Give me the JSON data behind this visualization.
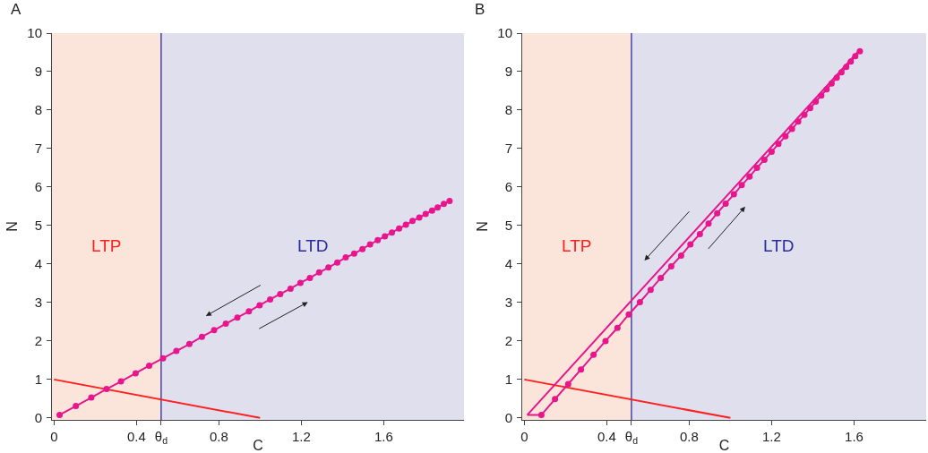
{
  "chart_data": [
    {
      "type": "line",
      "title": "A",
      "xlabel": "C",
      "ylabel": "N",
      "xlim": [
        -0.01,
        1.99
      ],
      "ylim": [
        -0.05,
        10
      ],
      "xticks": [
        0,
        0.4,
        {
          "value": 0.52,
          "label": "θ$_{d}$"
        },
        0.8,
        1.2,
        1.6
      ],
      "yticks": [
        0,
        1,
        2,
        3,
        4,
        5,
        6,
        7,
        8,
        9,
        10
      ],
      "grid": false,
      "line_style": "solid",
      "bands": [
        {
          "axis": "x",
          "from": -0.01,
          "to": 0.52,
          "label": "LTP",
          "color": "#fbe4da"
        },
        {
          "axis": "x",
          "from": 0.52,
          "to": 1.99,
          "label": "LTD",
          "color": "#dfdfee"
        }
      ],
      "ref_lines": [
        {
          "axis": "x",
          "value": 0.52,
          "color": "#2b2b9a"
        }
      ],
      "series": [
        {
          "color": "#ff2020",
          "marker": "none",
          "x": [
            0,
            1
          ],
          "values": [
            1,
            0
          ]
        },
        {
          "color": "#e8168c",
          "marker": "circle",
          "x": [
            0.027,
            0.106,
            0.181,
            0.255,
            0.325,
            0.396,
            0.462,
            0.529,
            0.594,
            0.657,
            0.718,
            0.777,
            0.834,
            0.89,
            0.946,
            0.998,
            1.049,
            1.098,
            1.148,
            1.196,
            1.242,
            1.287,
            1.332,
            1.375,
            1.416,
            1.457,
            1.497,
            1.534,
            1.571,
            1.606,
            1.64,
            1.675,
            1.708,
            1.74,
            1.773,
            1.804,
            1.835,
            1.862,
            1.892,
            1.92
          ],
          "values": [
            0.08,
            0.31,
            0.53,
            0.75,
            0.95,
            1.16,
            1.36,
            1.55,
            1.74,
            1.92,
            2.11,
            2.28,
            2.45,
            2.61,
            2.77,
            2.93,
            3.08,
            3.22,
            3.36,
            3.51,
            3.64,
            3.78,
            3.91,
            4.04,
            4.17,
            4.27,
            4.39,
            4.51,
            4.62,
            4.72,
            4.82,
            4.92,
            5.02,
            5.12,
            5.21,
            5.3,
            5.39,
            5.47,
            5.56,
            5.64
          ]
        }
      ]
    },
    {
      "type": "line",
      "title": "B",
      "xlabel": "C",
      "ylabel": "N",
      "xlim": [
        -0.01,
        1.95
      ],
      "ylim": [
        -0.05,
        10
      ],
      "xticks": [
        0,
        0.4,
        {
          "value": 0.52,
          "label": "θ$_{d}$"
        },
        0.8,
        1.2,
        1.6
      ],
      "yticks": [
        0,
        1,
        2,
        3,
        4,
        5,
        6,
        7,
        8,
        9,
        10
      ],
      "grid": false,
      "line_style": "solid",
      "bands": [
        {
          "axis": "x",
          "from": -0.01,
          "to": 0.52,
          "label": "LTP",
          "color": "#fbe4da"
        },
        {
          "axis": "x",
          "from": 0.52,
          "to": 1.95,
          "label": "LTD",
          "color": "#dfdfee"
        }
      ],
      "ref_lines": [
        {
          "axis": "x",
          "value": 0.52,
          "color": "#2b2b9a"
        }
      ],
      "series": [
        {
          "color": "#ff2020",
          "marker": "none",
          "x": [
            0,
            1
          ],
          "values": [
            1,
            0
          ]
        },
        {
          "color": "#e8168c",
          "marker": "circle",
          "x": [
            0.083,
            0.149,
            0.213,
            0.275,
            0.336,
            0.394,
            0.452,
            0.507,
            0.561,
            0.613,
            0.662,
            0.713,
            0.761,
            0.806,
            0.852,
            0.894,
            0.936,
            0.977,
            1.017,
            1.055,
            1.093,
            1.129,
            1.165,
            1.2,
            1.233,
            1.267,
            1.299,
            1.329,
            1.359,
            1.387,
            1.414,
            1.441,
            1.467,
            1.491,
            1.516,
            1.539,
            1.562,
            1.584,
            1.606,
            1.628
          ],
          "values": [
            0.08,
            0.49,
            0.88,
            1.26,
            1.64,
            2,
            2.34,
            2.69,
            3.01,
            3.33,
            3.64,
            3.94,
            4.22,
            4.51,
            4.78,
            5.05,
            5.32,
            5.57,
            5.81,
            6.05,
            6.27,
            6.5,
            6.71,
            6.92,
            7.12,
            7.32,
            7.51,
            7.7,
            7.88,
            8.05,
            8.22,
            8.38,
            8.54,
            8.69,
            8.84,
            8.98,
            9.12,
            9.26,
            9.4,
            9.53
          ]
        },
        {
          "color": "#e8168c",
          "marker": "none",
          "x": [
            1.628,
            0.015,
            0.083
          ],
          "values": [
            9.57,
            0.08,
            0.08
          ]
        }
      ]
    }
  ]
}
